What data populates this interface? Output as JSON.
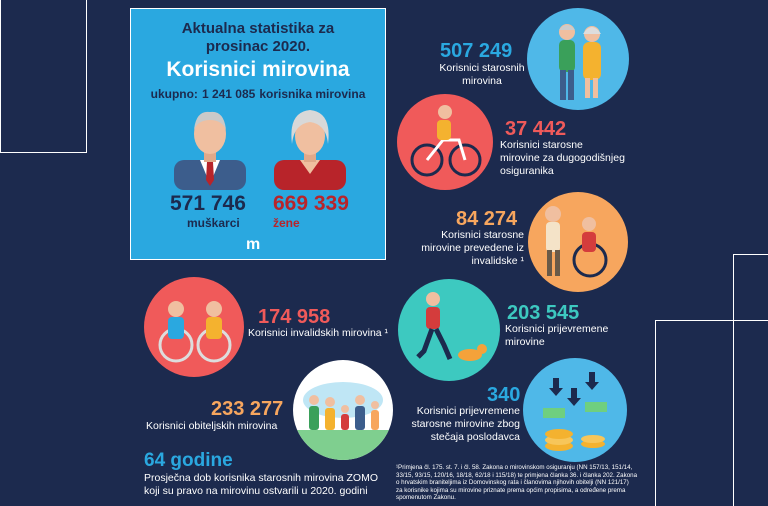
{
  "card": {
    "title_line1": "Aktualna statistika za",
    "title_line2": "prosinac 2020.",
    "heading": "Korisnici mirovina",
    "total_prefix": "ukupno:",
    "total_value": "1 241 085",
    "total_suffix": "korisnika mirovina",
    "men_value": "571 746",
    "men_label": "muškarci",
    "women_value": "669 339",
    "women_label": "žene",
    "logo": "m"
  },
  "stats": {
    "old_age": {
      "value": "507 249",
      "label_line1": "Korisnici starosnih",
      "label_line2": "mirovina"
    },
    "long_insurance": {
      "value": "37 442",
      "label_line1": "Korisnici starosne",
      "label_line2": "mirovine za dugogodišnjeg",
      "label_line3": "osiguranika"
    },
    "from_disability": {
      "value": "84 274",
      "label_line1": "Korisnici starosne",
      "label_line2": "mirovine prevedene iz",
      "label_line3": "invalidske ¹"
    },
    "disability": {
      "value": "174 958",
      "label_line1": "Korisnici invalidskih mirovina ¹"
    },
    "early": {
      "value": "203 545",
      "label_line1": "Korisnici prijevremene",
      "label_line2": "mirovine"
    },
    "family": {
      "value": "233 277",
      "label_line1": "Korisnici obiteljskih mirovina"
    },
    "bankruptcy": {
      "value": "340",
      "label_line1": "Korisnici prijevremene",
      "label_line2": "starosne mirovine zbog",
      "label_line3": "stečaja poslodavca"
    }
  },
  "average": {
    "value": "64 godine",
    "text_line1": "Prosječna dob korisnika  starosnih mirovina ZOMO",
    "text_line2": "koji su pravo na mirovinu ostvarili u 2020. godini"
  },
  "footnote": {
    "line1": "¹Primjena čl. 175. st. 7. i čl. 58. Zakona o mirovinskom osiguranju (NN 157/13, 151/14,",
    "line2": "33/15, 93/15, 120/16, 18/18, 62/18 i 115/18) te primjena članka 36. i članka 202. Zakona",
    "line3": "o hrvatskim braniteljima iz Domovinskog rata i članovima njihovih obitelji (NN 121/17)",
    "line4": "za korisnike kojima su mirovine priznate prema općim propisima, a određene prema",
    "line5": "spomenutom Zakonu."
  },
  "colors": {
    "background": "#1c2a4e",
    "card": "#2aa8e0",
    "accent_blue": "#2aa8e0",
    "accent_red": "#f05a5a",
    "accent_orange": "#f7a65e",
    "accent_teal": "#3dc9c0"
  },
  "icons": [
    "elderly-couple-icon",
    "cyclist-icon",
    "wheelchair-assist-icon",
    "wheelchair-couple-icon",
    "runner-with-dog-icon",
    "family-icon",
    "falling-money-icon",
    "man-icon",
    "woman-icon"
  ]
}
